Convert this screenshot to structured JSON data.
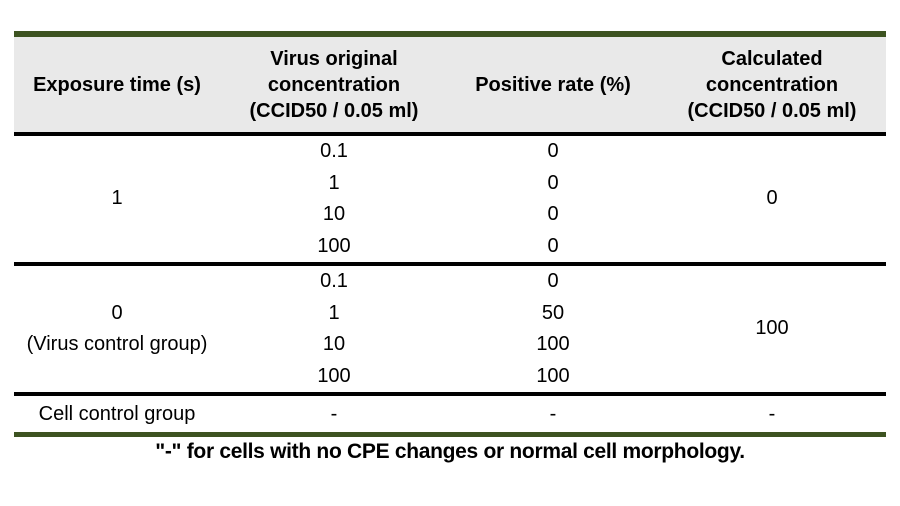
{
  "table": {
    "accent_green": "#3d5321",
    "header_bg": "#e9e9e9",
    "headers": [
      "Exposure time (s)",
      "Virus original\nconcentration\n(CCID50 / 0.05 ml)",
      "Positive rate (%)",
      "Calculated\nconcentration\n(CCID50 / 0.05 ml)"
    ],
    "groups": [
      {
        "exposure": "1",
        "calculated": "0",
        "rows": [
          {
            "concentration": "0.1",
            "positive_rate": "0"
          },
          {
            "concentration": "1",
            "positive_rate": "0"
          },
          {
            "concentration": "10",
            "positive_rate": "0"
          },
          {
            "concentration": "100",
            "positive_rate": "0"
          }
        ]
      },
      {
        "exposure": "0\n(Virus control group)",
        "calculated": "100",
        "rows": [
          {
            "concentration": "0.1",
            "positive_rate": "0"
          },
          {
            "concentration": "1",
            "positive_rate": "50"
          },
          {
            "concentration": "10",
            "positive_rate": "100"
          },
          {
            "concentration": "100",
            "positive_rate": "100"
          }
        ]
      }
    ],
    "cell_control": {
      "label": "Cell control group",
      "dash_concentration": "-",
      "dash_positive_rate": "-",
      "dash_calculated": "-"
    },
    "footnote": "\"-\" for cells with no CPE changes or normal cell morphology."
  }
}
